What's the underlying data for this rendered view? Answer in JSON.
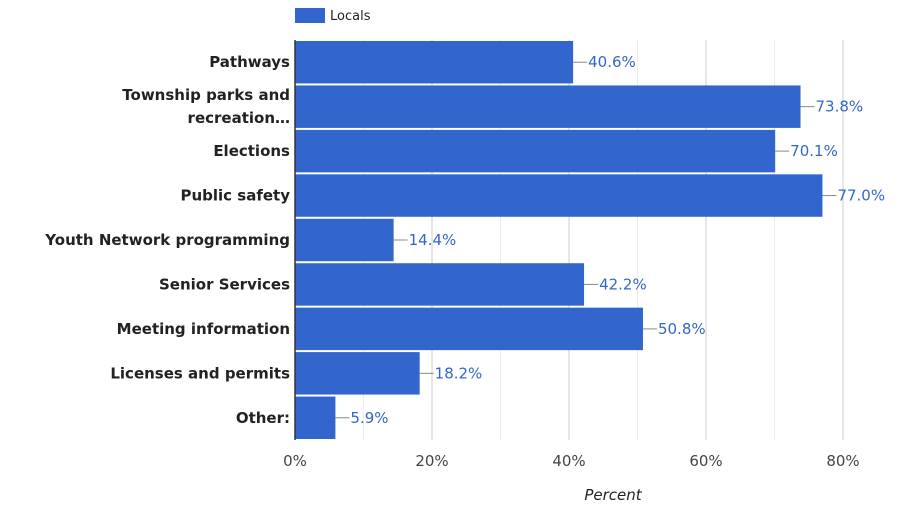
{
  "chart_data": {
    "type": "bar",
    "orientation": "horizontal",
    "categories": [
      [
        "Pathways"
      ],
      [
        "Township parks and",
        "recreation…"
      ],
      [
        "Elections"
      ],
      [
        "Public safety"
      ],
      [
        "Youth Network programming"
      ],
      [
        "Senior Services"
      ],
      [
        "Meeting information"
      ],
      [
        "Licenses and permits"
      ],
      [
        "Other:"
      ]
    ],
    "series": [
      {
        "name": "Locals",
        "color": "#3366cc",
        "values": [
          40.6,
          73.8,
          70.1,
          77.0,
          14.4,
          42.2,
          50.8,
          18.2,
          5.9
        ],
        "labels": [
          "40.6%",
          "73.8%",
          "70.1%",
          "77.0%",
          "14.4%",
          "42.2%",
          "50.8%",
          "18.2%",
          "5.9%"
        ]
      }
    ],
    "xlabel": "Percent",
    "xlim": [
      0,
      80
    ],
    "xticks": [
      0,
      20,
      40,
      60,
      80
    ],
    "xtick_labels": [
      "0%",
      "20%",
      "40%",
      "60%",
      "80%"
    ],
    "grid": true,
    "legend": "top-left"
  }
}
